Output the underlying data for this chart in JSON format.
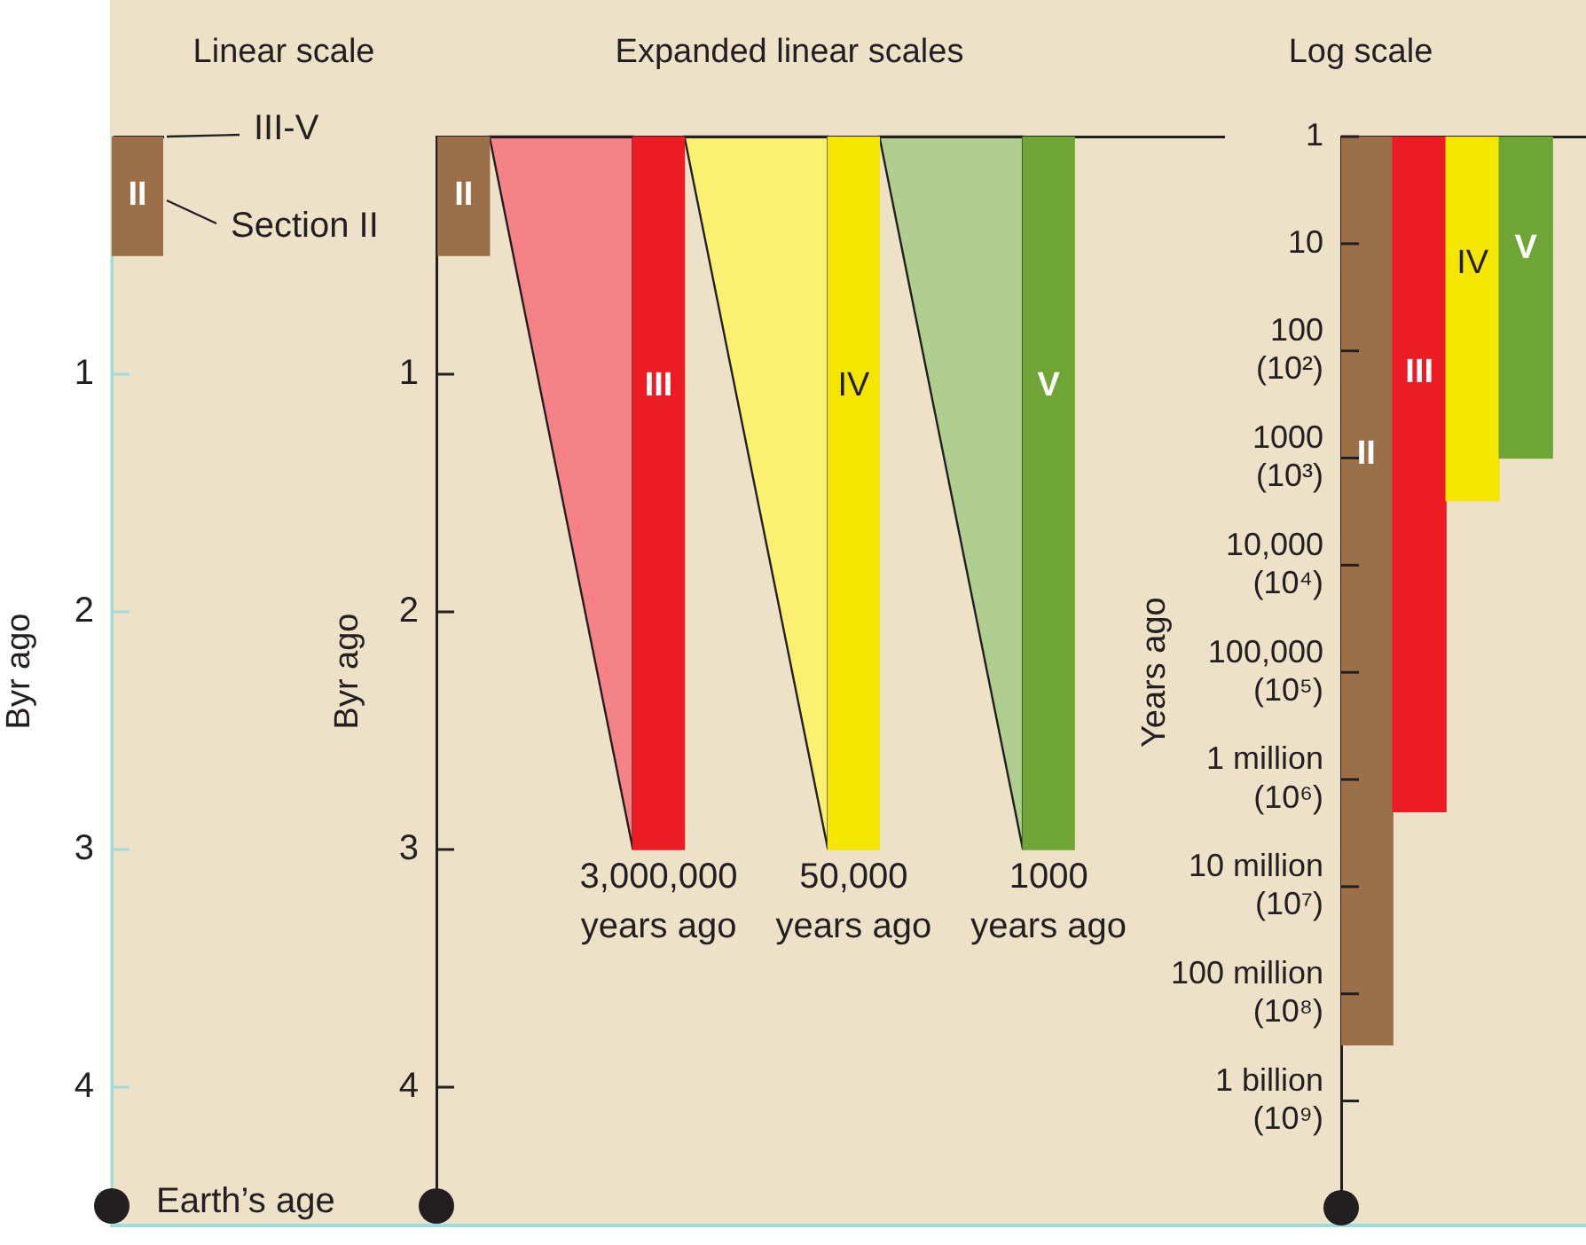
{
  "chart_data": [
    {
      "type": "bar",
      "title": "Linear scale",
      "ylabel": "Byr ago",
      "categories": [
        "II"
      ],
      "values": [
        0.5
      ],
      "colors": [
        "#9b7049"
      ],
      "ylim": [
        4.5,
        0
      ],
      "yticks": [
        1,
        2,
        3,
        4
      ],
      "grid": false,
      "legend": false,
      "annotations": [
        "III-V",
        "Section II",
        "Earth’s age"
      ]
    },
    {
      "type": "bar",
      "title": "Expanded linear scales",
      "ylabel": "Byr ago",
      "categories": [
        "II",
        "III",
        "IV",
        "V"
      ],
      "values": [
        0.5,
        3,
        3,
        3
      ],
      "colors": [
        "#9b7049",
        "#ed1c24",
        "#f5e600",
        "#6ea534"
      ],
      "ylim": [
        4.5,
        0
      ],
      "yticks": [
        1,
        2,
        3,
        4
      ],
      "grid": false,
      "legend": false,
      "annotations": [
        {
          "text": "3,000,000\nyears ago",
          "x": "III",
          "y": 3
        },
        {
          "text": "50,000\nyears ago",
          "x": "IV",
          "y": 3
        },
        {
          "text": "1000\nyears ago",
          "x": "V",
          "y": 3
        }
      ]
    },
    {
      "type": "bar",
      "title": "Log scale",
      "ylabel": "Years ago",
      "categories": [
        "II",
        "III",
        "IV",
        "V"
      ],
      "values": [
        300000000,
        2000000,
        2500,
        1000
      ],
      "colors": [
        "#9b7049",
        "#ed1c24",
        "#f5e600",
        "#6ea534"
      ],
      "log": true,
      "ylim": [
        10000000000,
        1
      ],
      "grid": false,
      "legend": false,
      "yticks": [
        1,
        10,
        {
          "value": 100,
          "label": "100\n(10²)"
        },
        {
          "value": 1000,
          "label": "1000\n(10³)"
        },
        {
          "value": 10000,
          "label": "10,000\n(10⁴)"
        },
        {
          "value": 100000,
          "label": "100,000\n(10⁵)"
        },
        {
          "value": 1000000,
          "label": "1 million\n(10⁶)"
        },
        {
          "value": 10000000,
          "label": "10 million\n(10⁷)"
        },
        {
          "value": 100000000,
          "label": "100 million\n(10⁸)"
        },
        {
          "value": 1000000000,
          "label": "1 billion\n(10⁹)"
        }
      ]
    }
  ]
}
